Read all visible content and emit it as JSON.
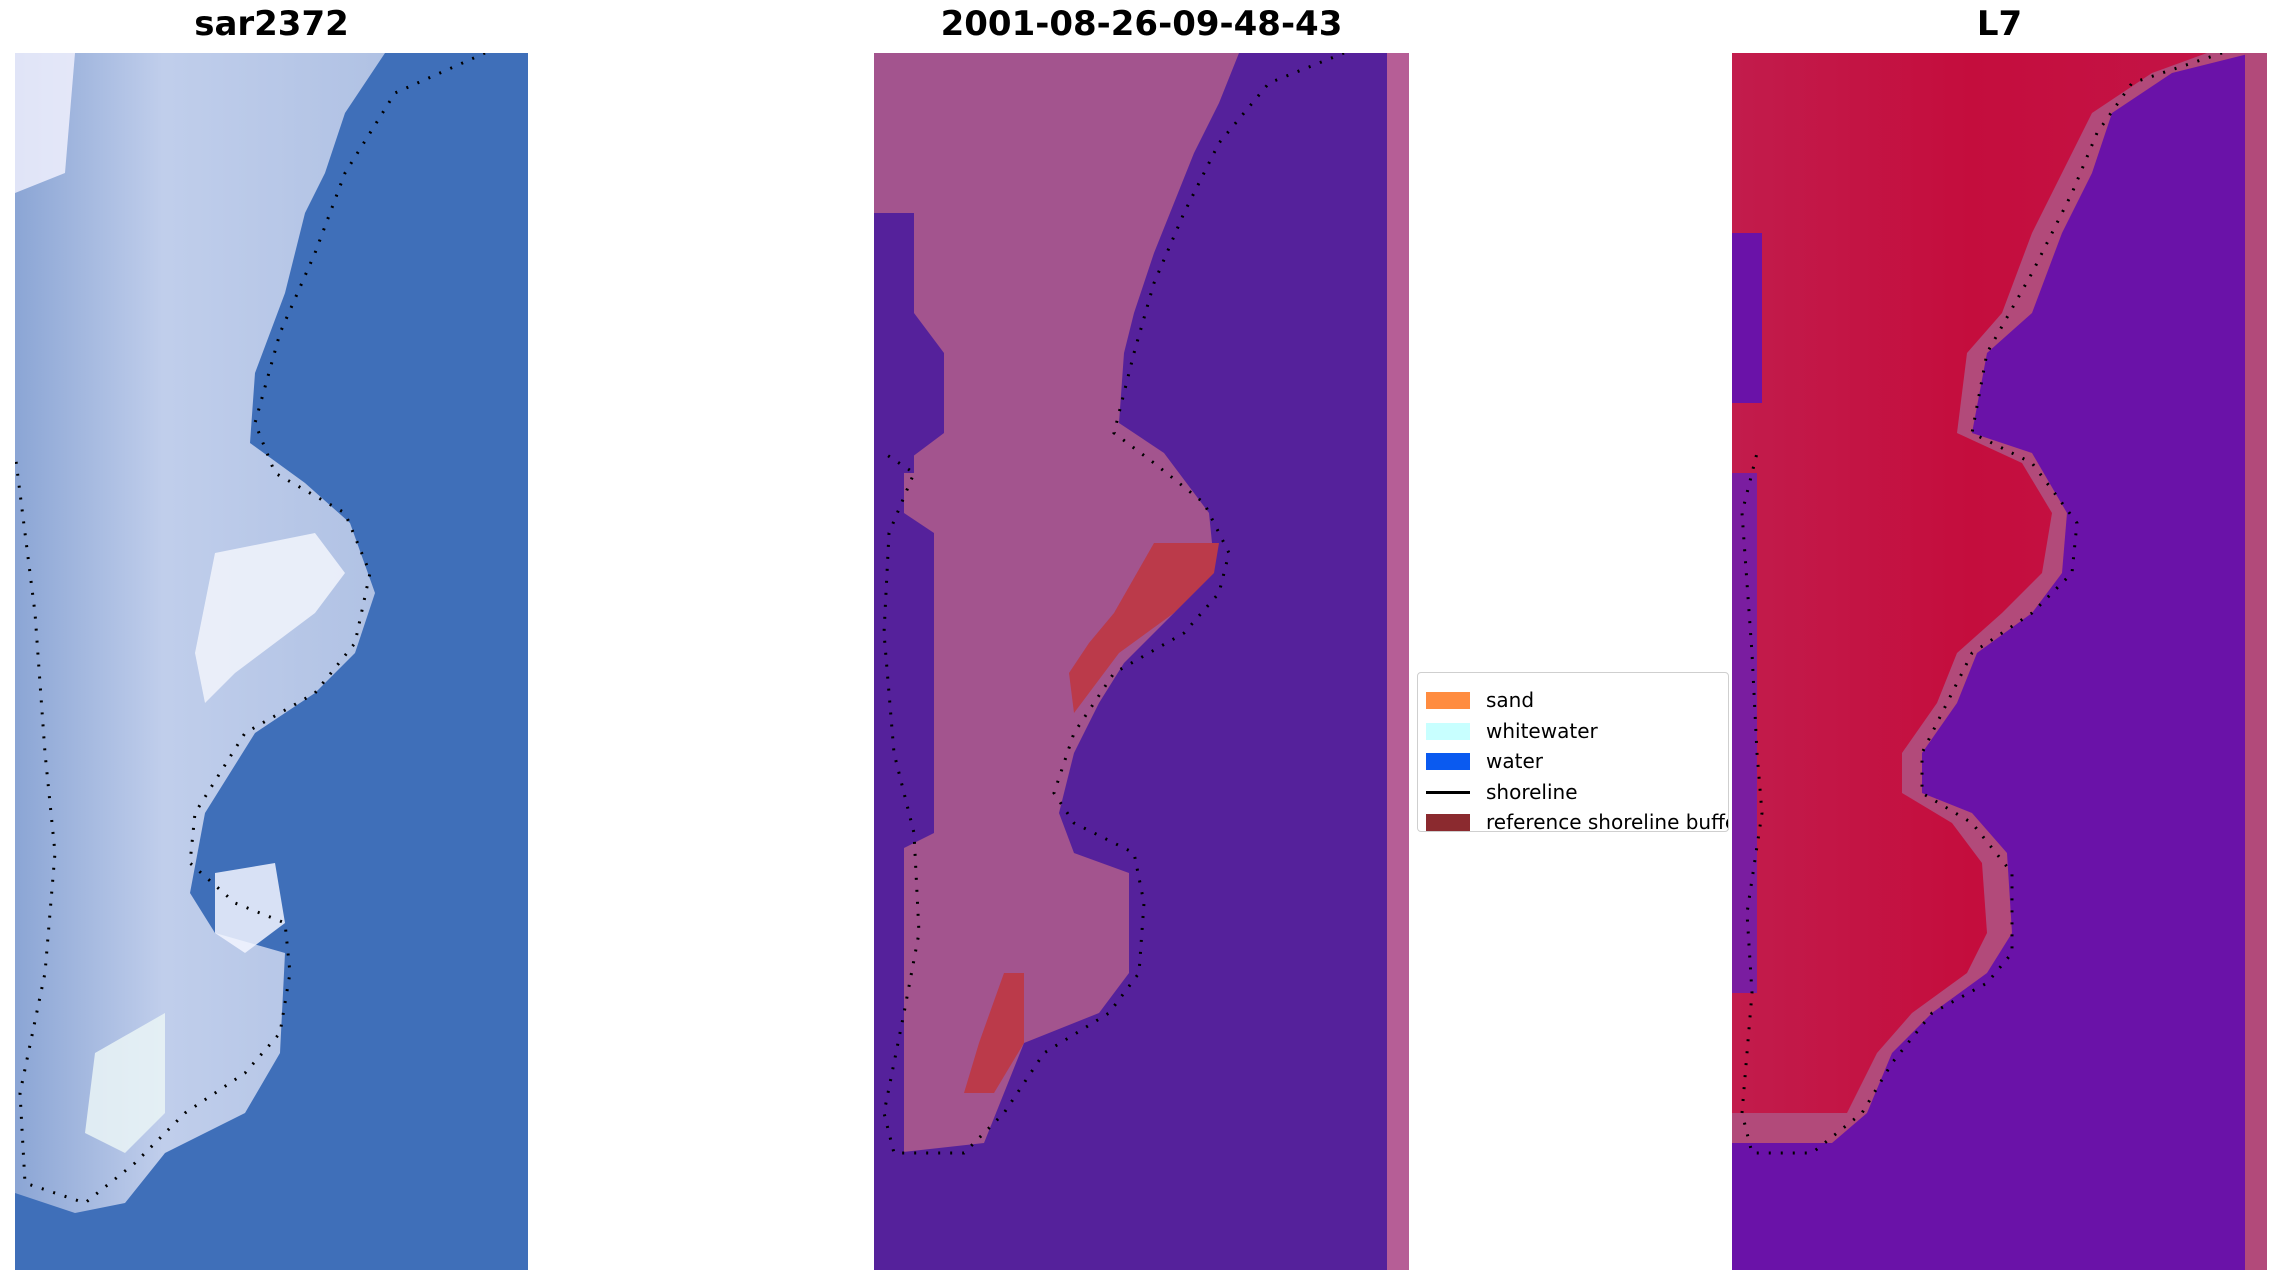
{
  "panels": [
    {
      "title": "sar2372"
    },
    {
      "title": "2001-08-26-09-48-43"
    },
    {
      "title": "L7"
    }
  ],
  "legend": {
    "items": [
      {
        "label": "sand",
        "color": "#ff8c40",
        "kind": "patch"
      },
      {
        "label": "whitewater",
        "color": "#c8ffff",
        "kind": "patch"
      },
      {
        "label": "water",
        "color": "#0a5af0",
        "kind": "patch"
      },
      {
        "label": "shoreline",
        "color": "#000000",
        "kind": "line"
      },
      {
        "label": "reference shoreline buffer",
        "color": "#8b2a2f",
        "kind": "patch"
      }
    ]
  },
  "colors": {
    "rgb_water": "#3e6fb8",
    "rgb_sand": "#a9bfe0",
    "rgb_bright": "#eef3ff",
    "class_bg": "#55219b",
    "class_land": "#a3548e",
    "class_buffer": "#bb3a4a",
    "class_edge": "#b65e96",
    "index_water": "#6a11a8",
    "index_land": "#c20d3e",
    "index_edge": "#b24a7a"
  }
}
